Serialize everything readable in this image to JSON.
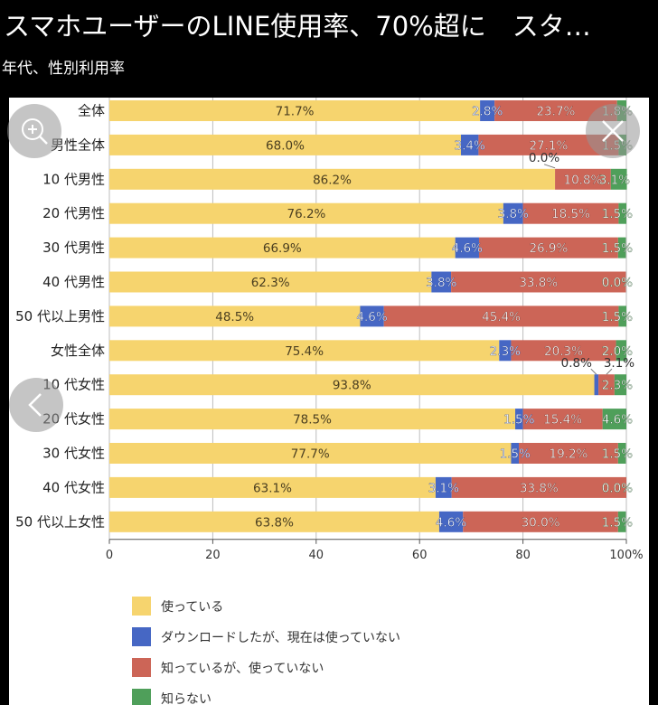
{
  "header": {
    "title": "スマホユーザーのLINE使用率、70%超に　スタ…",
    "subtitle": "年代、性別利用率"
  },
  "controls": {
    "zoom_icon": "zoom-in-icon",
    "close_icon": "close-icon",
    "prev_icon": "chevron-left-icon"
  },
  "chart_data": {
    "type": "bar",
    "orientation": "horizontal",
    "stacked": true,
    "categories": [
      "全体",
      "男性全体",
      "10 代男性",
      "20 代男性",
      "30 代男性",
      "40 代男性",
      "50 代以上男性",
      "女性全体",
      "10 代女性",
      "20 代女性",
      "30 代女性",
      "40 代女性",
      "50 代以上女性"
    ],
    "series": [
      {
        "name": "使っている",
        "color": "#f6d46e",
        "values": [
          71.7,
          68.0,
          86.2,
          76.2,
          66.9,
          62.3,
          48.5,
          75.4,
          93.8,
          78.5,
          77.7,
          63.1,
          63.8
        ]
      },
      {
        "name": "ダウンロードしたが、現在は使っていない",
        "color": "#4667c4",
        "values": [
          2.8,
          3.4,
          0.0,
          3.8,
          4.6,
          3.8,
          4.6,
          2.3,
          0.8,
          1.5,
          1.5,
          3.1,
          4.6
        ]
      },
      {
        "name": "知っているが、使っていない",
        "color": "#cc6557",
        "values": [
          23.7,
          27.1,
          10.8,
          18.5,
          26.9,
          33.8,
          45.4,
          20.3,
          3.1,
          15.4,
          19.2,
          33.8,
          30.0
        ]
      },
      {
        "name": "知らない",
        "color": "#4f9f5a",
        "values": [
          1.8,
          1.5,
          3.1,
          1.5,
          1.5,
          0.0,
          1.5,
          2.0,
          2.3,
          4.6,
          1.5,
          0.0,
          1.5
        ]
      }
    ],
    "labels": [
      [
        "71.7%",
        "2.8%",
        "23.7%",
        "1.8%"
      ],
      [
        "68.0%",
        "3.4%",
        "27.1%",
        "1.5%"
      ],
      [
        "86.2%",
        "0.0%",
        "10.8%",
        "3.1%"
      ],
      [
        "76.2%",
        "3.8%",
        "18.5%",
        "1.5%"
      ],
      [
        "66.9%",
        "4.6%",
        "26.9%",
        "1.5%"
      ],
      [
        "62.3%",
        "3.8%",
        "33.8%",
        "0.0%"
      ],
      [
        "48.5%",
        "4.6%",
        "45.4%",
        "1.5%"
      ],
      [
        "75.4%",
        "2.3%",
        "20.3%",
        "2.0%"
      ],
      [
        "93.8%",
        "0.8%",
        "3.1%",
        "2.3%"
      ],
      [
        "78.5%",
        "1.5%",
        "15.4%",
        "4.6%"
      ],
      [
        "77.7%",
        "1.5%",
        "19.2%",
        "1.5%"
      ],
      [
        "63.1%",
        "3.1%",
        "33.8%",
        "0.0%"
      ],
      [
        "63.8%",
        "4.6%",
        "30.0%",
        "1.5%"
      ]
    ],
    "xticks": [
      "0",
      "20",
      "40",
      "60",
      "80",
      "100%"
    ],
    "xlim": [
      0,
      100
    ],
    "grid": true,
    "legend": "bottom"
  }
}
